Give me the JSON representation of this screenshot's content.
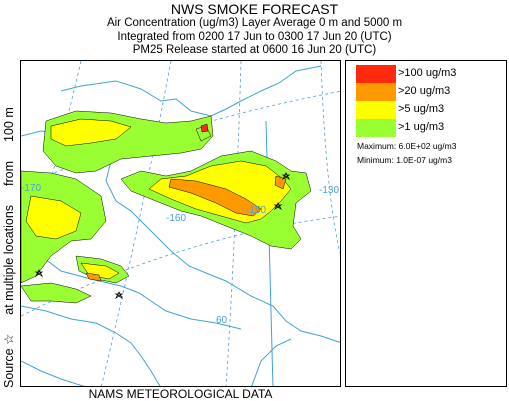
{
  "header": {
    "title": "NWS SMOKE FORECAST",
    "line1": "Air Concentration (ug/m3) Layer Average    0 m and  5000 m",
    "line2": "Integrated from 0200 17 Jun to 0300 17 Jun 20 (UTC)",
    "line3": "PM25 Release started at 0600 16 Jun 20 (UTC)"
  },
  "side_label": {
    "source": "Source ☆",
    "locations": "at multiple locations",
    "from": "from",
    "height": "100 m"
  },
  "legend": {
    "items": [
      {
        "label": ">100 ug/m3",
        "color": "#ff2a0d"
      },
      {
        "label": ">20 ug/m3",
        "color": "#ff9900"
      },
      {
        "label": ">5 ug/m3",
        "color": "#ffff00"
      },
      {
        "label": ">1 ug/m3",
        "color": "#99ff33"
      }
    ],
    "maximum": "Maximum: 6.0E+02 ug/m3",
    "minimum": "Minimum: 1.0E-07 ug/m3"
  },
  "map": {
    "lon_labels": [
      "-170",
      "-160",
      "-150",
      "-130"
    ],
    "lat_labels": [
      "60"
    ]
  },
  "footer": "NAMS METEOROLOGICAL DATA"
}
